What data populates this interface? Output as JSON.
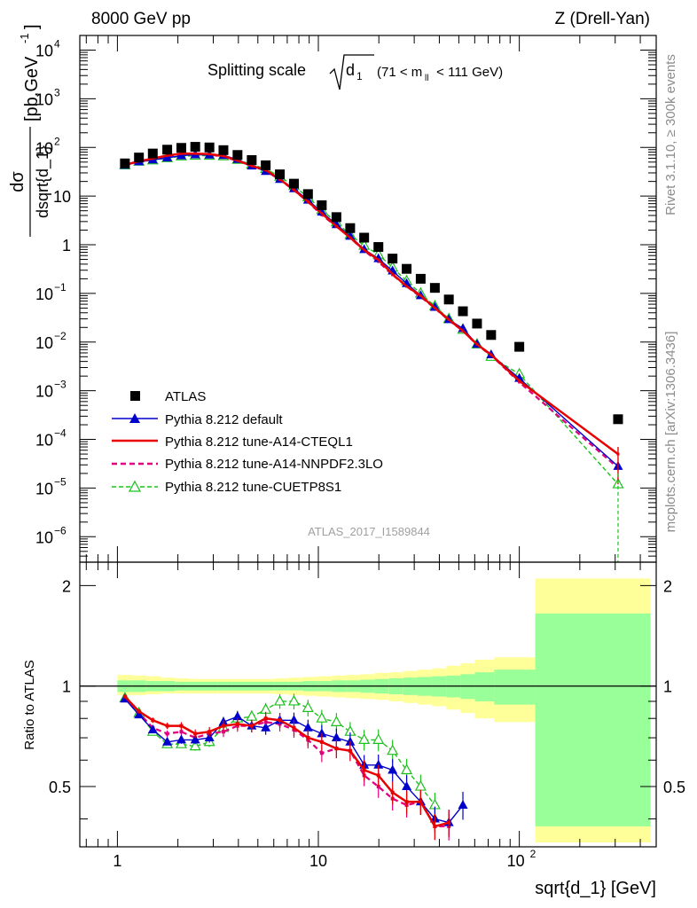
{
  "header": {
    "left": "8000 GeV pp",
    "right": "Z (Drell-Yan)"
  },
  "side_labels": {
    "top": "Rivet 3.1.10, ≥ 300k events",
    "bottom": "mcplots.cern.ch [arXiv:1306.3436]"
  },
  "chart_data": {
    "type": "scatter",
    "title": {
      "main": "Splitting scale",
      "sqrt_arg": "d",
      "sub": "1",
      "range": "(71 < m",
      "range_sub": "ll",
      "range_end": " < 111 GeV)"
    },
    "analysis_id": "ATLAS_2017_I1589844",
    "xlabel": "sqrt{d_1} [GeV]",
    "ylabel": {
      "frac_num": "dσ",
      "frac_den": "dsqrt{d_1}",
      "units": "[pb,GeV",
      "units_sup": "-1",
      "units_end": "]"
    },
    "ratio_ylabel": "Ratio to ATLAS",
    "xlim": [
      0.65,
      480
    ],
    "ylim": [
      3e-07,
      20000
    ],
    "ratio_ylim": [
      0.33,
      2.35
    ],
    "x_tick_labels": [
      "1",
      "10",
      "10",
      "2"
    ],
    "y_tick_labels": [
      {
        "base": "10",
        "exp": "4"
      },
      {
        "base": "10",
        "exp": "3"
      },
      {
        "base": "10",
        "exp": "2"
      },
      {
        "base": "10",
        "exp": ""
      },
      {
        "base": "1",
        "exp": ""
      },
      {
        "base": "10",
        "exp": "−1"
      },
      {
        "base": "10",
        "exp": "−2"
      },
      {
        "base": "10",
        "exp": "−3"
      },
      {
        "base": "10",
        "exp": "−4"
      },
      {
        "base": "10",
        "exp": "−5"
      },
      {
        "base": "10",
        "exp": "−6"
      }
    ],
    "ratio_tick_labels": [
      "2",
      "1",
      "0.5"
    ],
    "x": [
      1.09,
      1.28,
      1.5,
      1.77,
      2.08,
      2.44,
      2.87,
      3.37,
      3.96,
      4.66,
      5.47,
      6.43,
      7.56,
      8.88,
      10.4,
      12.3,
      14.4,
      16.9,
      19.9,
      23.4,
      27.5,
      32.3,
      38.0,
      44.6,
      52.4,
      61.6,
      72.4,
      100,
      310
    ],
    "series": [
      {
        "name": "ATLAS",
        "marker": "square",
        "color": "#000000",
        "values": [
          47,
          62,
          75,
          90,
          98,
          103,
          100,
          88,
          70,
          55,
          43,
          28,
          18,
          11,
          6.5,
          3.7,
          2.2,
          1.4,
          0.9,
          0.52,
          0.32,
          0.2,
          0.13,
          0.075,
          0.043,
          0.024,
          0.014,
          0.008,
          0.00026
        ]
      },
      {
        "name": "Pythia 8.212 default",
        "marker": "triangle",
        "color": "#0000cc",
        "line": "solid",
        "values": [
          43,
          50.9,
          55.5,
          61.2,
          67.6,
          71,
          70,
          68.6,
          56.7,
          41.8,
          32.3,
          22.1,
          14.2,
          8.3,
          4.7,
          2.6,
          1.5,
          0.8,
          0.52,
          0.29,
          0.16,
          0.09,
          0.052,
          0.029,
          0.019,
          0.009,
          0.0055,
          0.0018,
          2.8e-05
        ]
      },
      {
        "name": "Pythia 8.212 tune-A14-CTEQL1",
        "marker": "none",
        "color": "#e80000",
        "line": "solid",
        "values": [
          43.7,
          52.1,
          59.2,
          68.2,
          74.5,
          74.6,
          73,
          66.9,
          53.9,
          41.8,
          34.4,
          22.2,
          13.5,
          7.7,
          4.4,
          2.4,
          1.4,
          0.78,
          0.49,
          0.25,
          0.14,
          0.09,
          0.05,
          0.029,
          0.017,
          0.009,
          0.0055,
          0.0016,
          5e-05
        ]
      },
      {
        "name": "Pythia 8.212 tune-A14-NNPDF2.3LO",
        "marker": "none",
        "color": "#e0007f",
        "line": "dashed",
        "values": [
          43.2,
          51.5,
          56.2,
          64.8,
          71.5,
          72.1,
          72,
          64.2,
          53.2,
          41.8,
          33.5,
          21.6,
          13.3,
          7.6,
          4.1,
          2.4,
          1.4,
          0.76,
          0.45,
          0.24,
          0.14,
          0.085,
          0.05,
          0.028,
          0.017,
          0.0088,
          0.0054,
          0.0015,
          2.6e-05
        ]
      },
      {
        "name": "Pythia 8.212 tune-CUETP8S1",
        "marker": "open-triangle",
        "color": "#1ec01e",
        "line": "dashed",
        "values": [
          43.2,
          51.5,
          54.4,
          60.3,
          65.7,
          68,
          68,
          66,
          56,
          44.5,
          36.4,
          25.2,
          16.2,
          9.5,
          5.2,
          2.9,
          1.6,
          0.96,
          0.63,
          0.34,
          0.18,
          0.1,
          0.055,
          0.03,
          0.018,
          0.009,
          0.005,
          0.0022,
          1.2e-05
        ]
      }
    ],
    "ratio_series": [
      {
        "name": "Pythia 8.212 default",
        "values": [
          0.915,
          0.82,
          0.74,
          0.68,
          0.69,
          0.69,
          0.7,
          0.78,
          0.81,
          0.76,
          0.75,
          0.79,
          0.79,
          0.75,
          0.72,
          0.7,
          0.68,
          0.58,
          0.58,
          0.56,
          0.5,
          0.45,
          0.4,
          0.39,
          0.44
        ]
      },
      {
        "name": "Pythia 8.212 tune-A14-CTEQL1",
        "values": [
          0.93,
          0.84,
          0.79,
          0.76,
          0.76,
          0.72,
          0.73,
          0.76,
          0.77,
          0.76,
          0.8,
          0.79,
          0.75,
          0.7,
          0.68,
          0.65,
          0.64,
          0.56,
          0.54,
          0.48,
          0.45,
          0.45,
          0.38,
          0.39
        ]
      },
      {
        "name": "Pythia 8.212 tune-A14-NNPDF2.3LO",
        "values": [
          0.92,
          0.83,
          0.75,
          0.72,
          0.73,
          0.7,
          0.72,
          0.73,
          0.76,
          0.76,
          0.78,
          0.77,
          0.74,
          0.69,
          0.63,
          0.65,
          0.64,
          0.54,
          0.5,
          0.46,
          0.44,
          0.45,
          0.38,
          0.38
        ]
      },
      {
        "name": "Pythia 8.212 tune-CUETP8S1",
        "values": [
          0.92,
          0.83,
          0.73,
          0.67,
          0.67,
          0.66,
          0.68,
          0.75,
          0.8,
          0.81,
          0.85,
          0.9,
          0.9,
          0.86,
          0.8,
          0.78,
          0.73,
          0.69,
          0.69,
          0.64,
          0.56,
          0.5,
          0.44
        ]
      }
    ],
    "uncertainty_bands": {
      "edges": [
        1.0,
        1.18,
        1.39,
        1.64,
        1.93,
        2.27,
        2.67,
        3.15,
        3.71,
        4.37,
        5.14,
        6.06,
        7.14,
        8.41,
        9.91,
        11.67,
        13.75,
        16.2,
        19.08,
        22.48,
        26.48,
        31.19,
        36.74,
        43.28,
        50.98,
        60.06,
        75,
        120,
        450
      ],
      "stat_plus": [
        0.04,
        0.04,
        0.035,
        0.035,
        0.03,
        0.03,
        0.03,
        0.03,
        0.03,
        0.03,
        0.03,
        0.03,
        0.03,
        0.035,
        0.035,
        0.04,
        0.04,
        0.045,
        0.05,
        0.055,
        0.06,
        0.065,
        0.07,
        0.075,
        0.085,
        0.1,
        0.12,
        0.65
      ],
      "total_plus": [
        0.08,
        0.075,
        0.07,
        0.06,
        0.055,
        0.05,
        0.05,
        0.05,
        0.05,
        0.05,
        0.05,
        0.055,
        0.06,
        0.065,
        0.07,
        0.075,
        0.08,
        0.085,
        0.095,
        0.1,
        0.11,
        0.12,
        0.13,
        0.15,
        0.17,
        0.2,
        0.22,
        1.1
      ],
      "stat_minus": [
        0.04,
        0.04,
        0.035,
        0.035,
        0.03,
        0.03,
        0.03,
        0.03,
        0.03,
        0.03,
        0.03,
        0.03,
        0.03,
        0.035,
        0.035,
        0.04,
        0.04,
        0.045,
        0.05,
        0.055,
        0.06,
        0.065,
        0.07,
        0.075,
        0.085,
        0.1,
        0.12,
        0.62
      ],
      "total_minus": [
        0.06,
        0.06,
        0.055,
        0.05,
        0.05,
        0.05,
        0.05,
        0.05,
        0.05,
        0.05,
        0.05,
        0.055,
        0.06,
        0.065,
        0.07,
        0.075,
        0.08,
        0.085,
        0.09,
        0.1,
        0.11,
        0.12,
        0.13,
        0.15,
        0.17,
        0.2,
        0.22,
        0.66
      ]
    },
    "colors": {
      "band_stat": "#99ff99",
      "band_total": "#ffff99"
    }
  }
}
